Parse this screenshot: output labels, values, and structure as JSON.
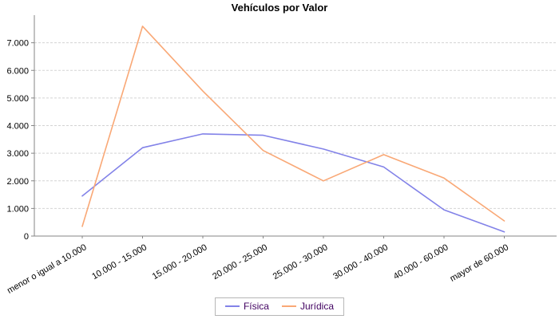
{
  "chart_data": {
    "type": "line",
    "title": "Vehículos por Valor",
    "categories": [
      "menor o igual a 10.000",
      "10.000 - 15.000",
      "15.000 - 20.000",
      "20.000 - 25.000",
      "25.000 - 30.000",
      "30.000 - 40.000",
      "40.000 - 60.000",
      "mayor de 60.000"
    ],
    "series": [
      {
        "name": "Física",
        "color": "#8282e8",
        "values": [
          1450,
          3200,
          3700,
          3650,
          3150,
          2500,
          950,
          150
        ]
      },
      {
        "name": "Jurídica",
        "color": "#f9a876",
        "values": [
          350,
          7600,
          5250,
          3100,
          2000,
          2950,
          2100,
          550
        ]
      }
    ],
    "y_ticks": [
      0,
      1000,
      2000,
      3000,
      4000,
      5000,
      6000,
      7000
    ],
    "y_tick_labels": [
      "0",
      "1.000",
      "2.000",
      "3.000",
      "4.000",
      "5.000",
      "6.000",
      "7.000"
    ],
    "ylim": [
      0,
      8000
    ],
    "xlabel": "",
    "ylabel": "",
    "grid": "horizontal-dashed",
    "legend_position": "bottom-center",
    "colors": {
      "background": "#ffffff",
      "axis": "#848484",
      "gridline": "#d4d4d4",
      "tick_text": "#000000",
      "legend_text": "#400060",
      "legend_border": "#b6b6b6",
      "title_text": "#000000"
    }
  }
}
